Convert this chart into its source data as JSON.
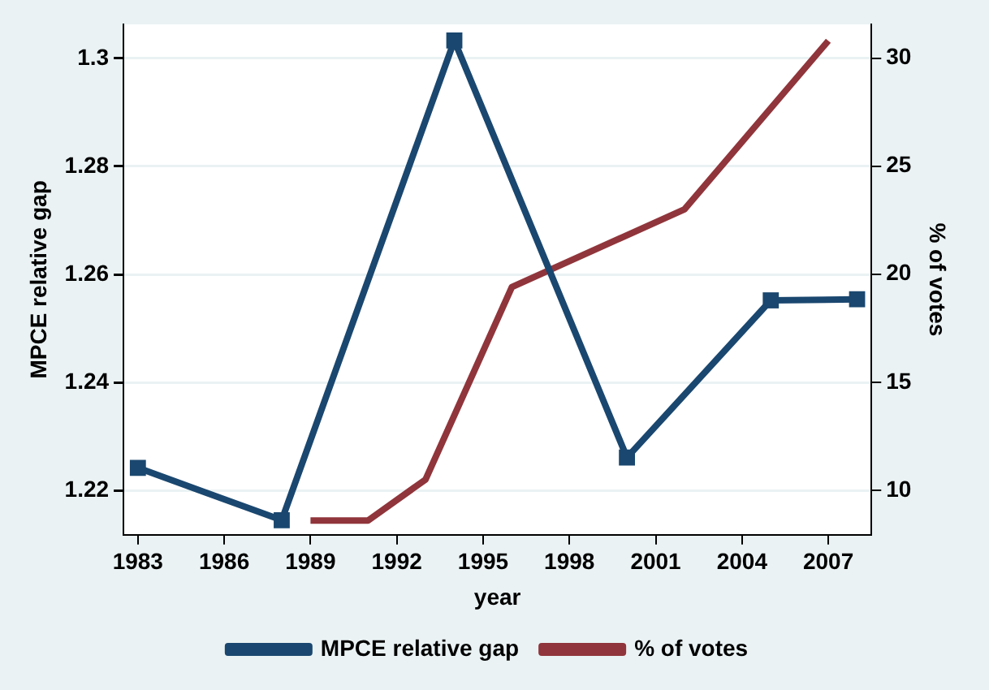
{
  "chart_data": {
    "type": "line",
    "xlabel": "year",
    "ylabel": "MPCE relative gap",
    "y2label": "% of votes",
    "xlim": [
      1982.5,
      2008.5
    ],
    "xticks": [
      1983,
      1986,
      1989,
      1992,
      1995,
      1998,
      2001,
      2004,
      2007
    ],
    "ylim": [
      1.2118,
      1.3063
    ],
    "yticks": [
      1.22,
      1.24,
      1.26,
      1.28,
      1.3
    ],
    "y2lim": [
      7.94,
      31.56
    ],
    "y2ticks": [
      10,
      15,
      20,
      25,
      30
    ],
    "grid": "y",
    "legend": "bottom",
    "line_style": "solid",
    "series": [
      {
        "name": "MPCE relative gap",
        "color": "#1a476f",
        "marker": "square",
        "x": [
          1983,
          1988,
          1994,
          2000,
          2005,
          2008
        ],
        "values": [
          1.2242,
          1.2145,
          1.3033,
          1.2261,
          1.2552,
          1.2554
        ]
      },
      {
        "name": "% of votes",
        "color": "#90353b",
        "marker": "none",
        "axis": "y2",
        "x": [
          1989,
          1991,
          1993,
          1996,
          2002,
          2007
        ],
        "values": [
          8.6,
          8.6,
          10.5,
          19.4,
          23.0,
          30.8
        ]
      }
    ]
  }
}
